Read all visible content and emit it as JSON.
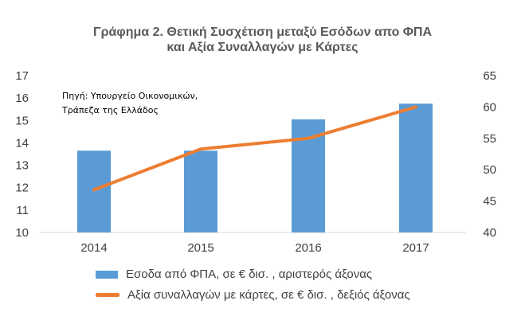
{
  "chart_data": {
    "type": "bar",
    "title_line1": "Γράφημα 2. Θετική Συσχέτιση μεταξύ Εσόδων απο ΦΠΑ",
    "title_line2": "και Αξία Συναλλαγών με Κάρτες",
    "source_line1": "Πηγή: Υπουργείο Οικονομικών,",
    "source_line2": "Τράπεζα της Ελλάδος",
    "categories": [
      "2014",
      "2015",
      "2016",
      "2017"
    ],
    "series": [
      {
        "name": "Εσοδα από ΦΠΑ, σε € δισ. , αριστερός άξονας",
        "type": "bar",
        "axis": "left",
        "color": "#5B9BD5",
        "values": [
          13.65,
          13.65,
          15.05,
          15.75
        ]
      },
      {
        "name": "Αξία συναλλαγών  με κάρτες, σε € δισ. , δεξιός άξονας",
        "type": "line",
        "axis": "right",
        "color": "#ED7D31",
        "values": [
          46.8,
          53.3,
          55.0,
          60.0
        ]
      }
    ],
    "y_left": {
      "min": 10,
      "max": 17,
      "ticks": [
        "10",
        "11",
        "12",
        "13",
        "14",
        "15",
        "16",
        "17"
      ]
    },
    "y_right": {
      "min": 40,
      "max": 65,
      "ticks": [
        "40",
        "45",
        "50",
        "55",
        "60",
        "65"
      ]
    },
    "grid": false,
    "legend_position": "bottom"
  }
}
